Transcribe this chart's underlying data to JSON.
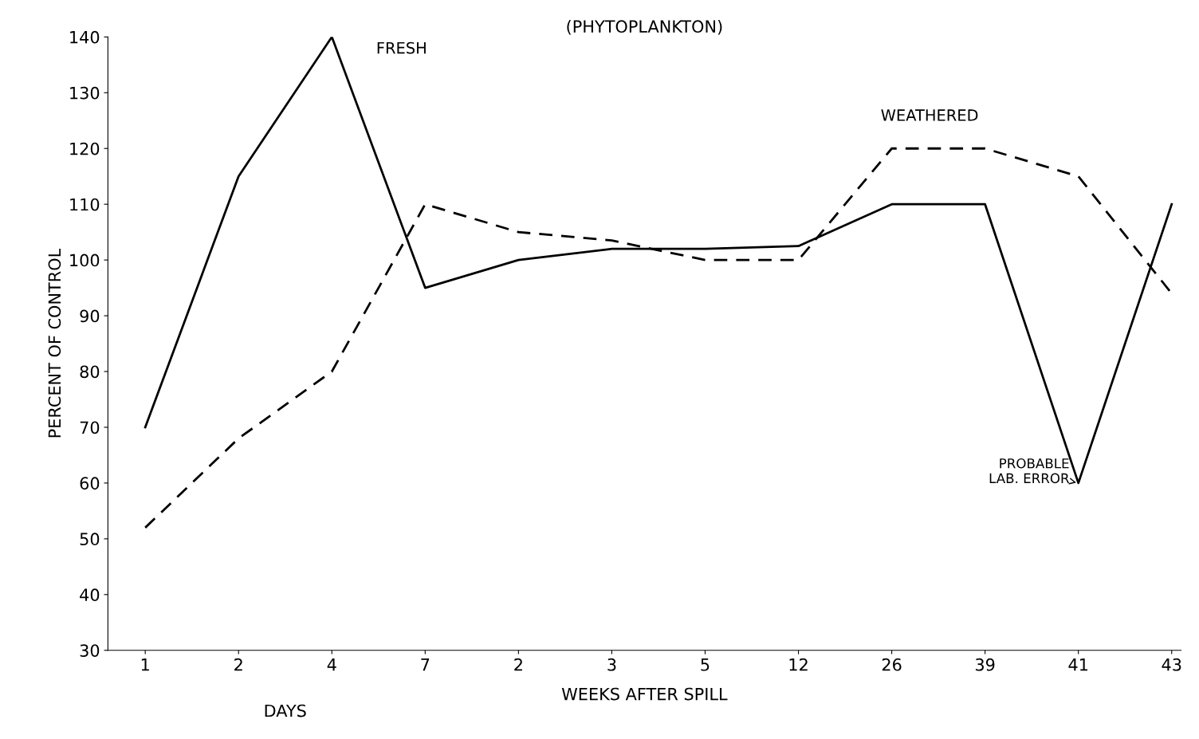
{
  "chart_data": {
    "type": "line",
    "title": "(PHYTOPLANKTON)",
    "ylabel": "PERCENT OF CONTROL",
    "xlabel": "WEEKS AFTER SPILL",
    "categories": [
      "1",
      "2",
      "4",
      "7",
      "2",
      "3",
      "5",
      "12",
      "26",
      "39",
      "41",
      "43"
    ],
    "series": [
      {
        "name": "FRESH",
        "color": "#000000",
        "line_style": "solid",
        "values": [
          70,
          115,
          140,
          95,
          100,
          102,
          102,
          102.5,
          110,
          110,
          60,
          110
        ]
      },
      {
        "name": "WEATHERED",
        "color": "#000000",
        "line_style": "dashed",
        "values": [
          52,
          68,
          80,
          110,
          105,
          103.5,
          100,
          100,
          120,
          120,
          115,
          94
        ]
      }
    ],
    "annotations": [
      "DAYS",
      {
        "text": "PROBABLE\nLAB. ERROR",
        "x": "41",
        "y": 60
      }
    ],
    "ylim": [
      30,
      140
    ],
    "yticks": [
      30,
      40,
      50,
      60,
      70,
      80,
      90,
      100,
      110,
      120,
      130,
      140
    ],
    "grid": false,
    "legend": false,
    "marker": "none"
  }
}
